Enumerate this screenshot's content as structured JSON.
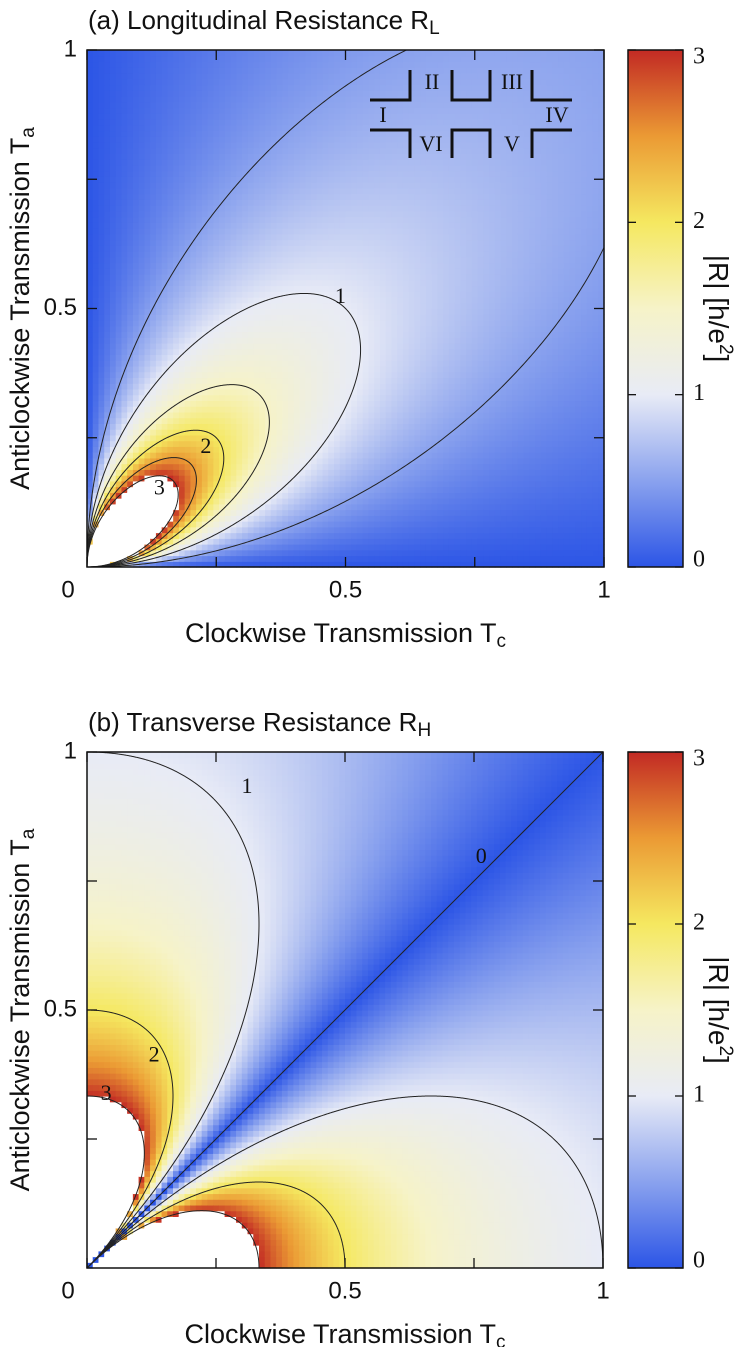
{
  "chart_data": [
    {
      "type": "heatmap",
      "title": {
        "text": "(a) Longitudinal Resistance R",
        "sub": "L"
      },
      "xlabel": {
        "text": "Clockwise Transmission T",
        "sub": "c"
      },
      "ylabel": {
        "text": "Anticlockwise Transmission T",
        "sub": "a"
      },
      "colorbar_label": {
        "text": "|R| [h/e",
        "sup": "2",
        "end": "]"
      },
      "xlim": [
        0,
        1
      ],
      "ylim": [
        0,
        1
      ],
      "xticks": [
        0,
        0.5,
        1
      ],
      "yticks": [
        0.5,
        1
      ],
      "minor_ticks": [
        0.25,
        0.75
      ],
      "zlim": [
        0,
        3
      ],
      "zticks": [
        0,
        1,
        2,
        3
      ],
      "colors": [
        "#2c55e6",
        "#8aa2ee",
        "#e8ebf6",
        "#f6f3c8",
        "#f5e860",
        "#eb9a34",
        "#c22a24"
      ],
      "contour_levels": [
        0.5,
        1,
        1.5,
        2,
        2.5,
        3
      ],
      "contour_labels": [
        {
          "value": 1,
          "x": 0.49,
          "y": 0.52
        },
        {
          "value": 2,
          "x": 0.23,
          "y": 0.23
        },
        {
          "value": 3,
          "x": 0.14,
          "y": 0.15
        }
      ],
      "inset_labels": [
        "I",
        "II",
        "III",
        "IV",
        "V",
        "VI"
      ]
    },
    {
      "type": "heatmap",
      "title": {
        "text": "(b) Transverse Resistance R",
        "sub": "H"
      },
      "xlabel": {
        "text": "Clockwise Transmission T",
        "sub": "c"
      },
      "ylabel": {
        "text": "Anticlockwise Transmission T",
        "sub": "a"
      },
      "colorbar_label": {
        "text": "|R| [h/e",
        "sup": "2",
        "end": "]"
      },
      "xlim": [
        0,
        1
      ],
      "ylim": [
        0,
        1
      ],
      "xticks": [
        0,
        0.5,
        1
      ],
      "yticks": [
        0.5,
        1
      ],
      "minor_ticks": [
        0.25,
        0.75
      ],
      "zlim": [
        0,
        3
      ],
      "zticks": [
        0,
        1,
        2,
        3
      ],
      "colors": [
        "#2c55e6",
        "#8aa2ee",
        "#e8ebf6",
        "#f6f3c8",
        "#f5e860",
        "#eb9a34",
        "#c22a24"
      ],
      "contour_levels": [
        0,
        1,
        2,
        3
      ],
      "contour_labels": [
        {
          "value": 0,
          "x": 0.764,
          "y": 0.795
        },
        {
          "value": 1,
          "x": 0.31,
          "y": 0.93
        },
        {
          "value": 2,
          "x": 0.13,
          "y": 0.41
        },
        {
          "value": 3,
          "x": 0.037,
          "y": 0.335
        }
      ]
    }
  ]
}
